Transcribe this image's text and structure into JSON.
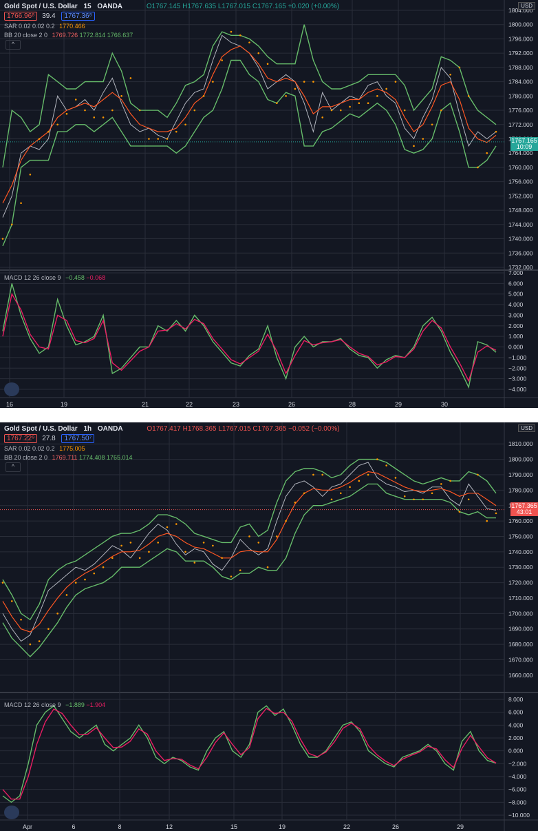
{
  "top": {
    "symbol": "Gold Spot / U.S. Dollar",
    "interval": "15",
    "broker": "OANDA",
    "bid": "1766.96⁸",
    "spread": "39.4",
    "ask": "1767.36⁸",
    "ohlc": {
      "o": "O1767.145",
      "h": "H1767.635",
      "l": "L1767.015",
      "c": "C1767.165",
      "chg": "+0.020 (+0.00%)"
    },
    "sar_label": "SAR 0.02 0.02 0.2",
    "sar_value": "1770.466",
    "bb_label": "BB 20 close 2 0",
    "bb_values": [
      "1769.726",
      "1772.814",
      "1766.637"
    ],
    "macd_label": "MACD 12 26 close 9",
    "macd_values": [
      "−0.458",
      "−0.068"
    ],
    "currency": "USD",
    "last_price": "1767.165",
    "countdown": "10:09",
    "collapse": "^"
  },
  "bottom": {
    "symbol": "Gold Spot / U.S. Dollar",
    "interval": "1h",
    "broker": "OANDA",
    "bid": "1767.22⁹",
    "spread": "27.8",
    "ask": "1767.50⁷",
    "ohlc": {
      "o": "O1767.417",
      "h": "H1768.365",
      "l": "L1767.015",
      "c": "C1767.365",
      "chg": "−0.052 (−0.00%)"
    },
    "sar_label": "SAR 0.02 0.02 0.2",
    "sar_value": "1775.005",
    "bb_label": "BB 20 close 2 0",
    "bb_values": [
      "1769.711",
      "1774.408",
      "1765.014"
    ],
    "macd_label": "MACD 12 26 close 9",
    "macd_values": [
      "−1.889",
      "−1.904"
    ],
    "currency": "USD",
    "last_price": "1767.365",
    "countdown": "43:01",
    "collapse": "^"
  },
  "colors": {
    "bg": "#131722",
    "grid": "#2a2e39",
    "price": "#b2b5be",
    "sar": "#ff9800",
    "bb_mid": "#ff5722",
    "bb_band": "#66bb6a",
    "macd": "#66bb6a",
    "signal": "#e91e63",
    "last_top": "#26a69a",
    "last_bot": "#ef5350"
  },
  "chart_data": [
    {
      "type": "line",
      "title": "Gold Spot / U.S. Dollar 15 OANDA",
      "ylim": [
        1732,
        1804
      ],
      "y_ticks": [
        "1804.000",
        "1800.000",
        "1796.000",
        "1792.000",
        "1788.000",
        "1784.000",
        "1780.000",
        "1776.000",
        "1772.000",
        "1768.000",
        "1764.000",
        "1760.000",
        "1756.000",
        "1752.000",
        "1748.000",
        "1744.000",
        "1740.000",
        "1736.000",
        "1732.000"
      ],
      "x_ticks": [
        "16",
        "19",
        "21",
        "22",
        "23",
        "26",
        "28",
        "29",
        "30"
      ],
      "price": [
        1746,
        1752,
        1764,
        1766,
        1765,
        1768,
        1780,
        1776,
        1777,
        1779,
        1776,
        1781,
        1785,
        1778,
        1772,
        1770,
        1771,
        1769,
        1768,
        1773,
        1778,
        1781,
        1782,
        1790,
        1797,
        1795,
        1794,
        1792,
        1788,
        1782,
        1784,
        1786,
        1784,
        1778,
        1770,
        1781,
        1776,
        1778,
        1780,
        1779,
        1783,
        1784,
        1780,
        1778,
        1771,
        1768,
        1774,
        1779,
        1788,
        1785,
        1775,
        1766,
        1770,
        1768,
        1770
      ],
      "sar": [
        1740,
        1744,
        1750,
        1758,
        1768,
        1770,
        1772,
        1775,
        1779,
        1776,
        1774,
        1774,
        1776,
        1780,
        1785,
        1776,
        1768,
        1768,
        1768,
        1770,
        1772,
        1776,
        1780,
        1784,
        1790,
        1798,
        1797,
        1795,
        1792,
        1789,
        1778,
        1780,
        1782,
        1784,
        1784,
        1774,
        1776,
        1776,
        1777,
        1778,
        1778,
        1780,
        1782,
        1784,
        1776,
        1766,
        1768,
        1772,
        1776,
        1786,
        1788,
        1780,
        1760,
        1764,
        1770
      ],
      "bb_mid": [
        1750,
        1755,
        1762,
        1766,
        1768,
        1770,
        1774,
        1776,
        1777,
        1778,
        1777,
        1779,
        1781,
        1779,
        1775,
        1772,
        1771,
        1770,
        1770,
        1771,
        1774,
        1778,
        1780,
        1786,
        1791,
        1793,
        1794,
        1792,
        1789,
        1785,
        1784,
        1785,
        1784,
        1780,
        1775,
        1777,
        1777,
        1778,
        1779,
        1779,
        1781,
        1782,
        1781,
        1779,
        1774,
        1770,
        1772,
        1777,
        1783,
        1784,
        1779,
        1771,
        1768,
        1767,
        1769
      ],
      "bb_upper": [
        1760,
        1776,
        1774,
        1770,
        1772,
        1786,
        1784,
        1782,
        1782,
        1784,
        1784,
        1784,
        1792,
        1787,
        1778,
        1776,
        1776,
        1776,
        1774,
        1778,
        1783,
        1784,
        1786,
        1794,
        1798,
        1797,
        1797,
        1796,
        1794,
        1791,
        1789,
        1789,
        1789,
        1800,
        1790,
        1784,
        1782,
        1782,
        1783,
        1784,
        1786,
        1786,
        1786,
        1786,
        1783,
        1776,
        1779,
        1782,
        1791,
        1790,
        1788,
        1780,
        1776,
        1774,
        1772
      ],
      "bb_lower": [
        1738,
        1744,
        1760,
        1762,
        1762,
        1762,
        1770,
        1770,
        1772,
        1772,
        1770,
        1772,
        1774,
        1770,
        1766,
        1766,
        1766,
        1766,
        1766,
        1764,
        1766,
        1770,
        1774,
        1776,
        1782,
        1790,
        1790,
        1786,
        1784,
        1779,
        1778,
        1781,
        1780,
        1766,
        1766,
        1770,
        1771,
        1773,
        1775,
        1774,
        1776,
        1778,
        1776,
        1772,
        1765,
        1764,
        1765,
        1768,
        1776,
        1778,
        1770,
        1760,
        1760,
        1762,
        1766
      ]
    },
    {
      "type": "line",
      "title": "MACD 12 26 close 9",
      "ylim": [
        -4,
        7
      ],
      "y_ticks": [
        "7.000",
        "6.000",
        "5.000",
        "4.000",
        "3.000",
        "2.000",
        "1.000",
        "0.000",
        "−1.000",
        "−2.000",
        "−3.000",
        "−4.000"
      ],
      "x_ticks": [
        "16",
        "19",
        "21",
        "22",
        "23",
        "26",
        "28",
        "29",
        "30"
      ],
      "macd": [
        1.5,
        6,
        3,
        0.8,
        -0.6,
        0,
        4.5,
        2,
        0.2,
        0.5,
        1,
        3,
        -2.5,
        -2,
        -1,
        0,
        0,
        2,
        1.5,
        2.5,
        1.5,
        3,
        2,
        0.5,
        -0.5,
        -1.5,
        -1.8,
        -0.8,
        -0.2,
        2,
        -1,
        -3,
        0,
        1,
        0,
        0.5,
        0.5,
        0.8,
        -0.2,
        -0.8,
        -1,
        -2,
        -1.2,
        -0.8,
        -1,
        0,
        2,
        2.8,
        1.5,
        -0.5,
        -2,
        -3.8,
        0.5,
        0.2,
        -0.5
      ],
      "signal": [
        1,
        5,
        3.5,
        1.2,
        0,
        -0.2,
        3,
        2.5,
        0.6,
        0.4,
        0.8,
        2.5,
        -1.5,
        -2.2,
        -1.3,
        -0.4,
        0,
        1.5,
        1.6,
        2.2,
        1.7,
        2.6,
        2.2,
        0.8,
        -0.2,
        -1.2,
        -1.6,
        -1,
        -0.4,
        1.2,
        -0.4,
        -2.5,
        -0.8,
        0.6,
        0.2,
        0.4,
        0.5,
        0.7,
        0,
        -0.6,
        -0.9,
        -1.7,
        -1.4,
        -0.9,
        -1,
        -0.2,
        1.5,
        2.5,
        1.8,
        0,
        -1.5,
        -3.2,
        -0.5,
        0.1,
        -0.3
      ]
    },
    {
      "type": "line",
      "title": "Gold Spot / U.S. Dollar 1h OANDA",
      "ylim": [
        1655,
        1815
      ],
      "y_ticks": [
        "1810.000",
        "1800.000",
        "1790.000",
        "1780.000",
        "1770.000",
        "1760.000",
        "1750.000",
        "1740.000",
        "1730.000",
        "1720.000",
        "1710.000",
        "1700.000",
        "1690.000",
        "1680.000",
        "1670.000",
        "1660.000"
      ],
      "x_ticks": [
        "Apr",
        "6",
        "8",
        "12",
        "15",
        "19",
        "22",
        "26",
        "29"
      ],
      "price": [
        1700,
        1690,
        1682,
        1686,
        1700,
        1715,
        1720,
        1725,
        1730,
        1728,
        1732,
        1738,
        1744,
        1741,
        1736,
        1744,
        1752,
        1758,
        1754,
        1745,
        1738,
        1742,
        1740,
        1732,
        1728,
        1736,
        1748,
        1742,
        1738,
        1742,
        1760,
        1776,
        1784,
        1786,
        1782,
        1776,
        1782,
        1784,
        1790,
        1796,
        1798,
        1788,
        1784,
        1782,
        1779,
        1780,
        1778,
        1782,
        1782,
        1774,
        1770,
        1784,
        1776,
        1768,
        1767
      ],
      "sar": [
        1720,
        1708,
        1696,
        1680,
        1682,
        1690,
        1700,
        1712,
        1720,
        1722,
        1726,
        1730,
        1736,
        1744,
        1746,
        1736,
        1740,
        1746,
        1756,
        1758,
        1740,
        1733,
        1746,
        1744,
        1736,
        1724,
        1728,
        1750,
        1746,
        1730,
        1750,
        1760,
        1772,
        1778,
        1790,
        1790,
        1774,
        1778,
        1782,
        1786,
        1790,
        1800,
        1796,
        1788,
        1776,
        1774,
        1774,
        1778,
        1784,
        1786,
        1766,
        1774,
        1790,
        1760,
        1765
      ],
      "bb_mid": [
        1708,
        1698,
        1690,
        1688,
        1693,
        1702,
        1710,
        1717,
        1722,
        1726,
        1729,
        1733,
        1737,
        1740,
        1740,
        1741,
        1745,
        1750,
        1752,
        1750,
        1746,
        1743,
        1742,
        1739,
        1736,
        1736,
        1740,
        1741,
        1740,
        1740,
        1748,
        1760,
        1771,
        1778,
        1781,
        1780,
        1780,
        1782,
        1785,
        1789,
        1792,
        1791,
        1788,
        1785,
        1782,
        1780,
        1779,
        1780,
        1781,
        1779,
        1776,
        1778,
        1778,
        1774,
        1770
      ],
      "bb_upper": [
        1722,
        1712,
        1700,
        1696,
        1706,
        1722,
        1728,
        1732,
        1734,
        1738,
        1742,
        1746,
        1750,
        1752,
        1752,
        1754,
        1758,
        1764,
        1764,
        1762,
        1758,
        1752,
        1750,
        1748,
        1746,
        1746,
        1756,
        1758,
        1750,
        1754,
        1772,
        1786,
        1792,
        1794,
        1794,
        1792,
        1788,
        1790,
        1796,
        1800,
        1800,
        1800,
        1798,
        1794,
        1790,
        1786,
        1784,
        1786,
        1788,
        1786,
        1786,
        1792,
        1790,
        1786,
        1778
      ],
      "bb_lower": [
        1694,
        1684,
        1678,
        1672,
        1678,
        1686,
        1694,
        1704,
        1712,
        1716,
        1718,
        1720,
        1724,
        1730,
        1730,
        1730,
        1734,
        1738,
        1742,
        1740,
        1734,
        1734,
        1734,
        1730,
        1724,
        1722,
        1726,
        1726,
        1730,
        1728,
        1728,
        1736,
        1752,
        1764,
        1770,
        1770,
        1772,
        1774,
        1776,
        1780,
        1784,
        1784,
        1778,
        1776,
        1774,
        1774,
        1774,
        1774,
        1774,
        1772,
        1766,
        1764,
        1766,
        1762,
        1762
      ]
    },
    {
      "type": "line",
      "title": "MACD 12 26 close 9",
      "ylim": [
        -10,
        8
      ],
      "y_ticks": [
        "8.000",
        "6.000",
        "4.000",
        "2.000",
        "0.000",
        "−2.000",
        "−4.000",
        "−6.000",
        "−8.000",
        "−10.000"
      ],
      "x_ticks": [
        "Apr",
        "6",
        "8",
        "12",
        "15",
        "19",
        "22",
        "26",
        "29"
      ],
      "macd": [
        -7,
        -8,
        -7,
        -2,
        4,
        6,
        7,
        5,
        3,
        2,
        3,
        4,
        1,
        0,
        1,
        2,
        4,
        2,
        -1,
        -2,
        -1,
        -1.5,
        -2.5,
        -3,
        0,
        2,
        3,
        0,
        -1,
        1,
        6,
        7,
        5.5,
        6.5,
        4,
        1,
        -1,
        -1,
        0,
        2,
        4,
        4.5,
        3,
        0,
        -1,
        -2,
        -2.5,
        -1,
        -0.5,
        0,
        1,
        0,
        -2,
        -3,
        1.5,
        3,
        0,
        -1.5,
        -1.9
      ],
      "signal": [
        -6,
        -7.5,
        -7.5,
        -4,
        1,
        4.5,
        6.5,
        5.8,
        4,
        2.5,
        2.6,
        3.6,
        2,
        0.5,
        0.6,
        1.5,
        3.4,
        2.6,
        0,
        -1.5,
        -1.2,
        -1.3,
        -2.2,
        -2.8,
        -1,
        1.3,
        2.8,
        1,
        -0.6,
        0.5,
        5,
        6.6,
        5.8,
        6,
        4.6,
        1.8,
        -0.4,
        -0.9,
        -0.2,
        1.4,
        3.5,
        4.3,
        3.4,
        0.8,
        -0.6,
        -1.6,
        -2.3,
        -1.3,
        -0.7,
        -0.2,
        0.7,
        0.3,
        -1.4,
        -2.6,
        0.4,
        2.4,
        0.6,
        -1.1,
        -1.9
      ]
    }
  ]
}
